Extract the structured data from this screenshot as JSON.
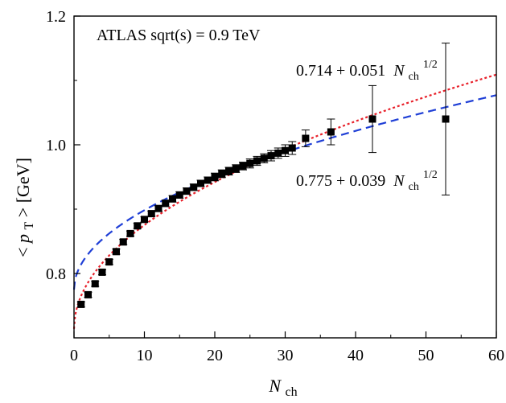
{
  "chart_data": {
    "type": "scatter",
    "title": "",
    "annotation_top": "ATLAS sqrt(s) = 0.9 TeV",
    "xlabel": {
      "italic": "N",
      "sub": "ch"
    },
    "ylabel": {
      "prefix": "< ",
      "italic": "p",
      "sub": "T",
      "suffix": " > [GeV]"
    },
    "xlim": [
      0,
      60
    ],
    "ylim": [
      0.7,
      1.2
    ],
    "xticks": [
      0,
      10,
      20,
      30,
      40,
      50,
      60
    ],
    "xtick_labels": [
      "0",
      "10",
      "20",
      "30",
      "40",
      "50",
      "60"
    ],
    "yticks": [
      0.8,
      1.0,
      1.2
    ],
    "ytick_labels": [
      "0.8",
      "1.0",
      "1.2"
    ],
    "grid": false,
    "series": [
      {
        "kind": "points",
        "color": "#000000",
        "points": [
          {
            "x": 1,
            "y": 0.752,
            "err": 0.004
          },
          {
            "x": 2,
            "y": 0.767,
            "err": 0.004
          },
          {
            "x": 3,
            "y": 0.784,
            "err": 0.004
          },
          {
            "x": 4,
            "y": 0.802,
            "err": 0.004
          },
          {
            "x": 5,
            "y": 0.818,
            "err": 0.004
          },
          {
            "x": 6,
            "y": 0.834,
            "err": 0.004
          },
          {
            "x": 7,
            "y": 0.849,
            "err": 0.004
          },
          {
            "x": 8,
            "y": 0.862,
            "err": 0.004
          },
          {
            "x": 9,
            "y": 0.874,
            "err": 0.004
          },
          {
            "x": 10,
            "y": 0.884,
            "err": 0.004
          },
          {
            "x": 11,
            "y": 0.893,
            "err": 0.004
          },
          {
            "x": 12,
            "y": 0.901,
            "err": 0.004
          },
          {
            "x": 13,
            "y": 0.909,
            "err": 0.005
          },
          {
            "x": 14,
            "y": 0.916,
            "err": 0.005
          },
          {
            "x": 15,
            "y": 0.922,
            "err": 0.005
          },
          {
            "x": 16,
            "y": 0.928,
            "err": 0.005
          },
          {
            "x": 17,
            "y": 0.934,
            "err": 0.005
          },
          {
            "x": 18,
            "y": 0.94,
            "err": 0.005
          },
          {
            "x": 19,
            "y": 0.945,
            "err": 0.005
          },
          {
            "x": 20,
            "y": 0.95,
            "err": 0.006
          },
          {
            "x": 21,
            "y": 0.955,
            "err": 0.006
          },
          {
            "x": 22,
            "y": 0.959,
            "err": 0.006
          },
          {
            "x": 23,
            "y": 0.963,
            "err": 0.006
          },
          {
            "x": 24,
            "y": 0.967,
            "err": 0.006
          },
          {
            "x": 25,
            "y": 0.971,
            "err": 0.007
          },
          {
            "x": 26,
            "y": 0.975,
            "err": 0.007
          },
          {
            "x": 27,
            "y": 0.979,
            "err": 0.007
          },
          {
            "x": 28,
            "y": 0.983,
            "err": 0.008
          },
          {
            "x": 29,
            "y": 0.987,
            "err": 0.008
          },
          {
            "x": 30,
            "y": 0.991,
            "err": 0.009
          },
          {
            "x": 31,
            "y": 0.995,
            "err": 0.01
          },
          {
            "x": 32.9,
            "y": 1.01,
            "err": 0.013
          },
          {
            "x": 36.5,
            "y": 1.02,
            "err": 0.02
          },
          {
            "x": 42.4,
            "y": 1.04,
            "err": 0.052
          },
          {
            "x": 52.8,
            "y": 1.04,
            "err": 0.118
          }
        ]
      },
      {
        "kind": "curve",
        "label_main": "0.714 + 0.051",
        "label_var": "N",
        "label_sub": "ch",
        "label_sup": "1/2",
        "a": 0.714,
        "b": 0.051,
        "color": "#e8202a",
        "dash": "dotted"
      },
      {
        "kind": "curve",
        "label_main": "0.775 + 0.039",
        "label_var": "N",
        "label_sub": "ch",
        "label_sup": "1/2",
        "a": 0.775,
        "b": 0.039,
        "color": "#1f3fd6",
        "dash": "dashed"
      }
    ]
  }
}
